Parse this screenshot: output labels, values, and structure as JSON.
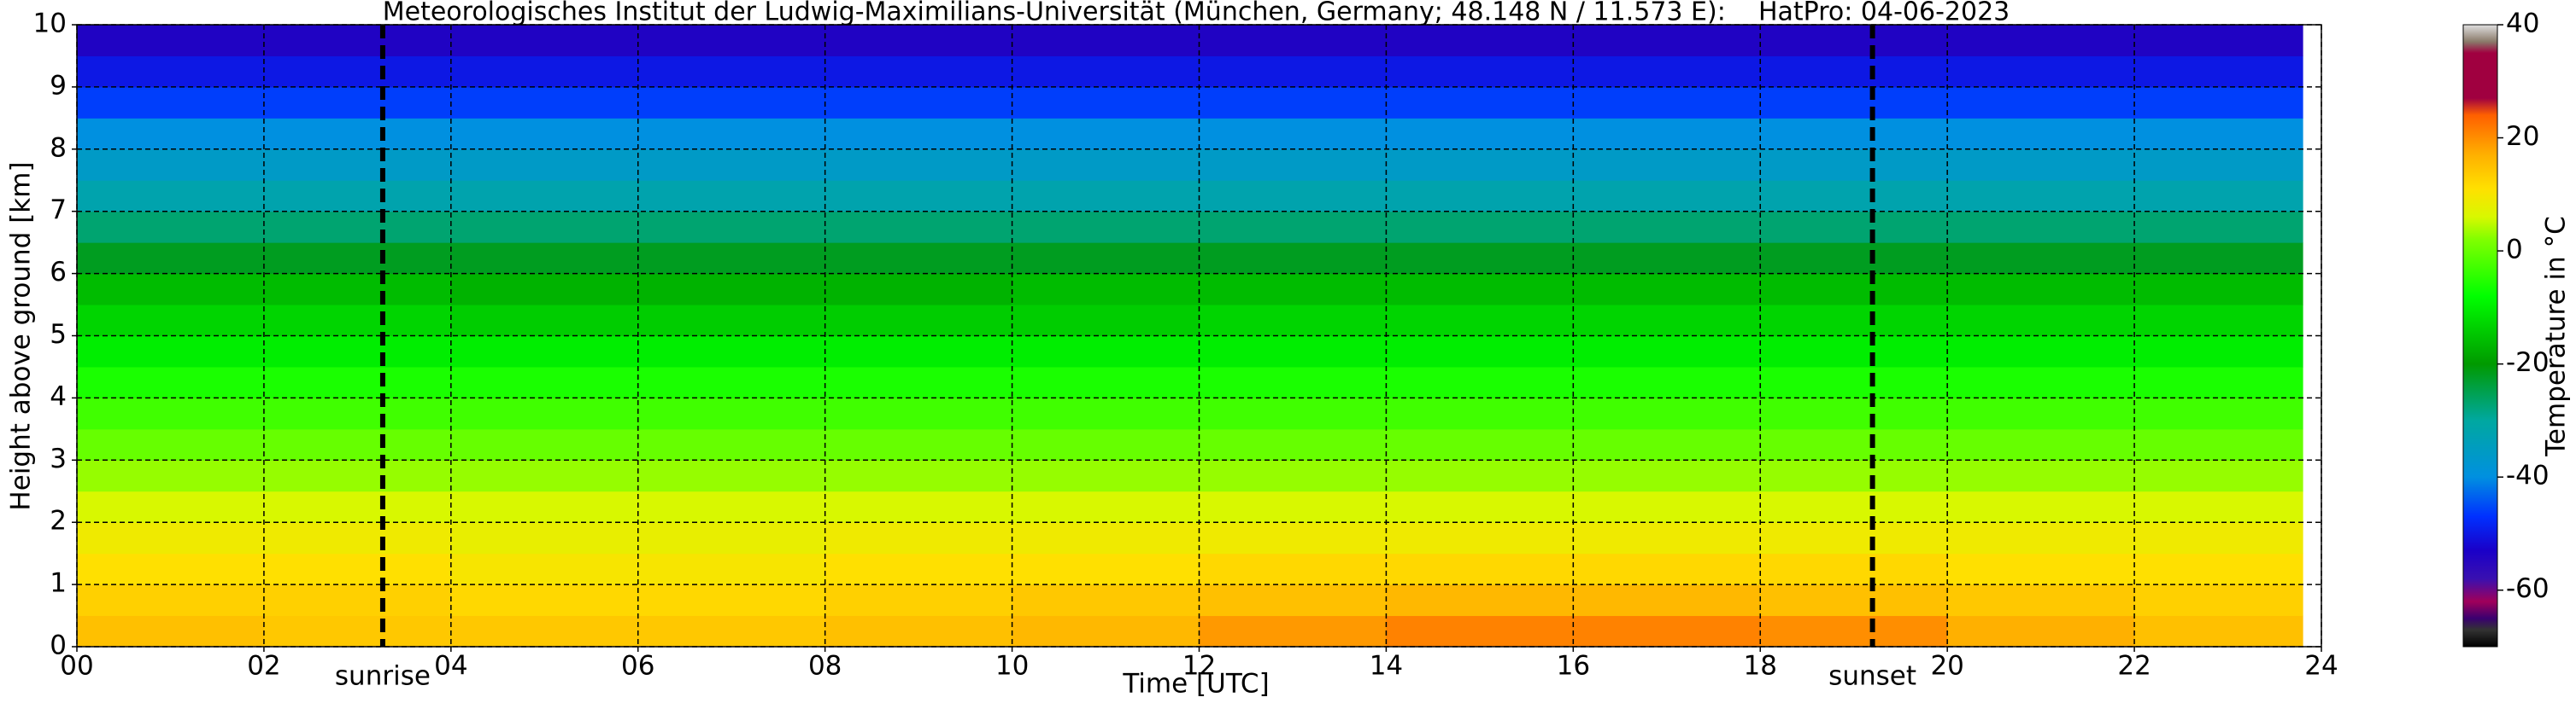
{
  "chart_data": {
    "type": "heatmap",
    "title": "Meteorologisches Institut der Ludwig-Maximilians-Universität (München, Germany; 48.148 N / 11.573 E):    HatPro: 04-06-2023",
    "x_label": "Time [UTC]",
    "y_label": "Height above ground [km]",
    "colorbar_label": "Temperature in °C",
    "xlim": [
      0,
      24
    ],
    "ylim": [
      0,
      10
    ],
    "clim": [
      -70,
      40
    ],
    "xticks": [
      {
        "value": 0,
        "label": "00"
      },
      {
        "value": 2,
        "label": "02"
      },
      {
        "value": 4,
        "label": "04"
      },
      {
        "value": 6,
        "label": "06"
      },
      {
        "value": 8,
        "label": "08"
      },
      10,
      12,
      14,
      16,
      18,
      20,
      22,
      24
    ],
    "yticks": [
      0,
      1,
      2,
      3,
      4,
      5,
      6,
      7,
      8,
      9,
      10
    ],
    "cticks": [
      -60,
      -40,
      -20,
      0,
      20,
      40
    ],
    "grid": true,
    "x_edges": [
      0,
      2,
      4,
      6,
      8,
      10,
      12,
      14,
      16,
      18,
      20,
      22,
      23.8
    ],
    "y_edges": [
      0,
      0.5,
      1,
      1.5,
      2,
      2.5,
      3,
      3.5,
      4,
      4.5,
      5,
      5.5,
      6,
      6.5,
      7,
      7.5,
      8,
      8.5,
      9,
      9.5,
      10
    ],
    "z": [
      [
        15,
        14,
        14,
        14,
        15,
        16,
        19,
        21,
        21,
        20,
        17,
        15
      ],
      [
        13,
        13,
        12,
        12,
        13,
        14,
        15,
        16,
        16,
        15,
        14,
        13
      ],
      [
        11,
        11,
        10,
        10,
        11,
        11,
        12,
        12,
        12,
        12,
        11,
        11
      ],
      [
        9,
        9,
        8,
        8,
        9,
        9,
        9,
        9,
        9,
        9,
        9,
        9
      ],
      [
        6,
        6,
        6,
        6,
        6,
        6,
        6,
        6,
        6,
        6,
        6,
        6
      ],
      [
        3,
        3,
        3,
        3,
        3,
        3,
        3,
        3,
        3,
        3,
        3,
        3
      ],
      [
        0,
        0,
        0,
        0,
        0,
        0,
        0,
        0,
        0,
        0,
        0,
        0
      ],
      [
        -3,
        -3,
        -3,
        -3,
        -3,
        -3,
        -3,
        -3,
        -3,
        -3,
        -3,
        -3
      ],
      [
        -6,
        -6,
        -6,
        -6,
        -6,
        -6,
        -6,
        -6,
        -6,
        -6,
        -6,
        -6
      ],
      [
        -10,
        -10,
        -10,
        -10,
        -10,
        -10,
        -10,
        -10,
        -10,
        -10,
        -10,
        -10
      ],
      [
        -13,
        -13,
        -14,
        -14,
        -14,
        -14,
        -13,
        -13,
        -13,
        -13,
        -13,
        -13
      ],
      [
        -16,
        -16,
        -17,
        -17,
        -17,
        -16,
        -16,
        -16,
        -16,
        -16,
        -16,
        -16
      ],
      [
        -22,
        -22,
        -22,
        -22,
        -22,
        -22,
        -22,
        -22,
        -22,
        -22,
        -22,
        -22
      ],
      [
        -27,
        -27,
        -27,
        -27,
        -27,
        -27,
        -27,
        -27,
        -27,
        -27,
        -27,
        -27
      ],
      [
        -32,
        -32,
        -32,
        -32,
        -32,
        -32,
        -32,
        -32,
        -32,
        -32,
        -32,
        -32
      ],
      [
        -36,
        -36,
        -36,
        -36,
        -36,
        -36,
        -36,
        -36,
        -36,
        -36,
        -36,
        -36
      ],
      [
        -40,
        -40,
        -40,
        -40,
        -40,
        -40,
        -40,
        -40,
        -40,
        -40,
        -40,
        -40
      ],
      [
        -46,
        -46,
        -46,
        -46,
        -46,
        -46,
        -46,
        -46,
        -46,
        -46,
        -46,
        -46
      ],
      [
        -50,
        -50,
        -50,
        -50,
        -50,
        -50,
        -50,
        -50,
        -50,
        -50,
        -50,
        -50
      ],
      [
        -54,
        -54,
        -54,
        -54,
        -54,
        -54,
        -54,
        -54,
        -54,
        -54,
        -54,
        -54
      ]
    ],
    "colormap": [
      {
        "value": -70,
        "color": "#000000"
      },
      {
        "value": -67,
        "color": "#333333"
      },
      {
        "value": -65,
        "color": "#3a0070"
      },
      {
        "value": -62,
        "color": "#a0005a"
      },
      {
        "value": -58,
        "color": "#3a10b0"
      },
      {
        "value": -53,
        "color": "#1a00c8"
      },
      {
        "value": -47,
        "color": "#0030ff"
      },
      {
        "value": -40,
        "color": "#0090e0"
      },
      {
        "value": -30,
        "color": "#00a8a0"
      },
      {
        "value": -20,
        "color": "#009a00"
      },
      {
        "value": -8,
        "color": "#00ff00"
      },
      {
        "value": 2,
        "color": "#80ff00"
      },
      {
        "value": 6,
        "color": "#d8f800"
      },
      {
        "value": 11,
        "color": "#ffe000"
      },
      {
        "value": 17,
        "color": "#ffb000"
      },
      {
        "value": 24,
        "color": "#ff6000"
      },
      {
        "value": 27,
        "color": "#a00040"
      },
      {
        "value": 35,
        "color": "#a00040"
      },
      {
        "value": 37,
        "color": "#8a7a6a"
      },
      {
        "value": 40,
        "color": "#e0e0e0"
      }
    ],
    "annotations": [
      {
        "text": "sunrise",
        "x": 3.27
      },
      {
        "text": "sunset",
        "x": 19.2
      }
    ]
  }
}
